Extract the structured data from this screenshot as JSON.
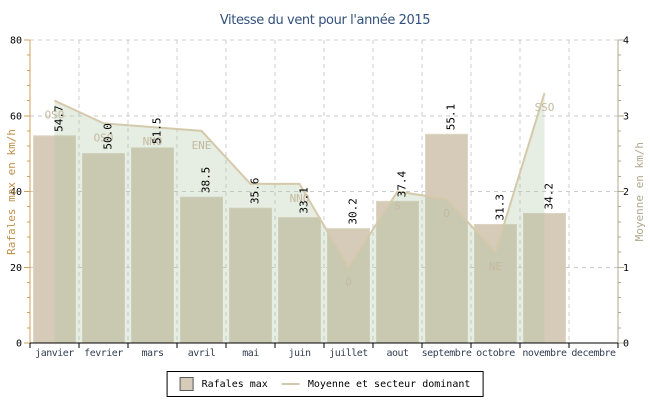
{
  "title": "Vitesse du vent pour l'année 2015",
  "legend": {
    "bar_label": "Rafales max",
    "line_label": "Moyenne et secteur dominant"
  },
  "chart_data": {
    "type": "bar",
    "title": "Vitesse du vent pour l'année 2015",
    "categories": [
      "janvier",
      "fevrier",
      "mars",
      "avril",
      "mai",
      "juin",
      "juillet",
      "aout",
      "septembre",
      "octobre",
      "novembre",
      "decembre"
    ],
    "series": [
      {
        "name": "Rafales max",
        "type": "bar",
        "axis": "left",
        "values": [
          54.7,
          50.0,
          51.5,
          38.5,
          35.6,
          33.1,
          30.2,
          37.4,
          55.1,
          31.3,
          34.2,
          null
        ]
      },
      {
        "name": "Moyenne et secteur dominant",
        "type": "area-line",
        "axis": "right",
        "values": [
          3.2,
          2.9,
          2.85,
          2.8,
          2.1,
          2.1,
          1.0,
          2.0,
          1.9,
          1.2,
          3.3,
          null
        ],
        "directions": [
          "OSO",
          "OSO",
          "NNO",
          "ENE",
          "",
          "NNO",
          "O",
          "S",
          "O",
          "NE",
          "SSO",
          ""
        ]
      }
    ],
    "left_axis": {
      "label": "Rafales max en km/h",
      "min": 0,
      "max": 80,
      "ticks": [
        0,
        20,
        40,
        60,
        80
      ],
      "minor_step": 4
    },
    "right_axis": {
      "label": "Moyenne en km/h",
      "min": 0,
      "max": 4,
      "ticks": [
        0,
        1,
        2,
        3,
        4
      ],
      "minor_step": 0.2
    },
    "grid": true,
    "legend_position": "bottom"
  },
  "colors": {
    "title": "#33517e",
    "bar_fill": "#d6cbb8",
    "bar_border": "#ddd5c2",
    "area_fill": "rgba(171,196,161,0.30)",
    "line": "#d5c9ab",
    "left_axis": "#cfa05a",
    "left_axis_title": "#c0904a",
    "right_axis": "#b3a88f",
    "right_axis_title": "#b3a88f",
    "grid": "#cccccc",
    "month_label": "#333f52",
    "value_label": "#000000",
    "direction_label": "#c4ba9f",
    "bottom_axis": "#000000"
  }
}
